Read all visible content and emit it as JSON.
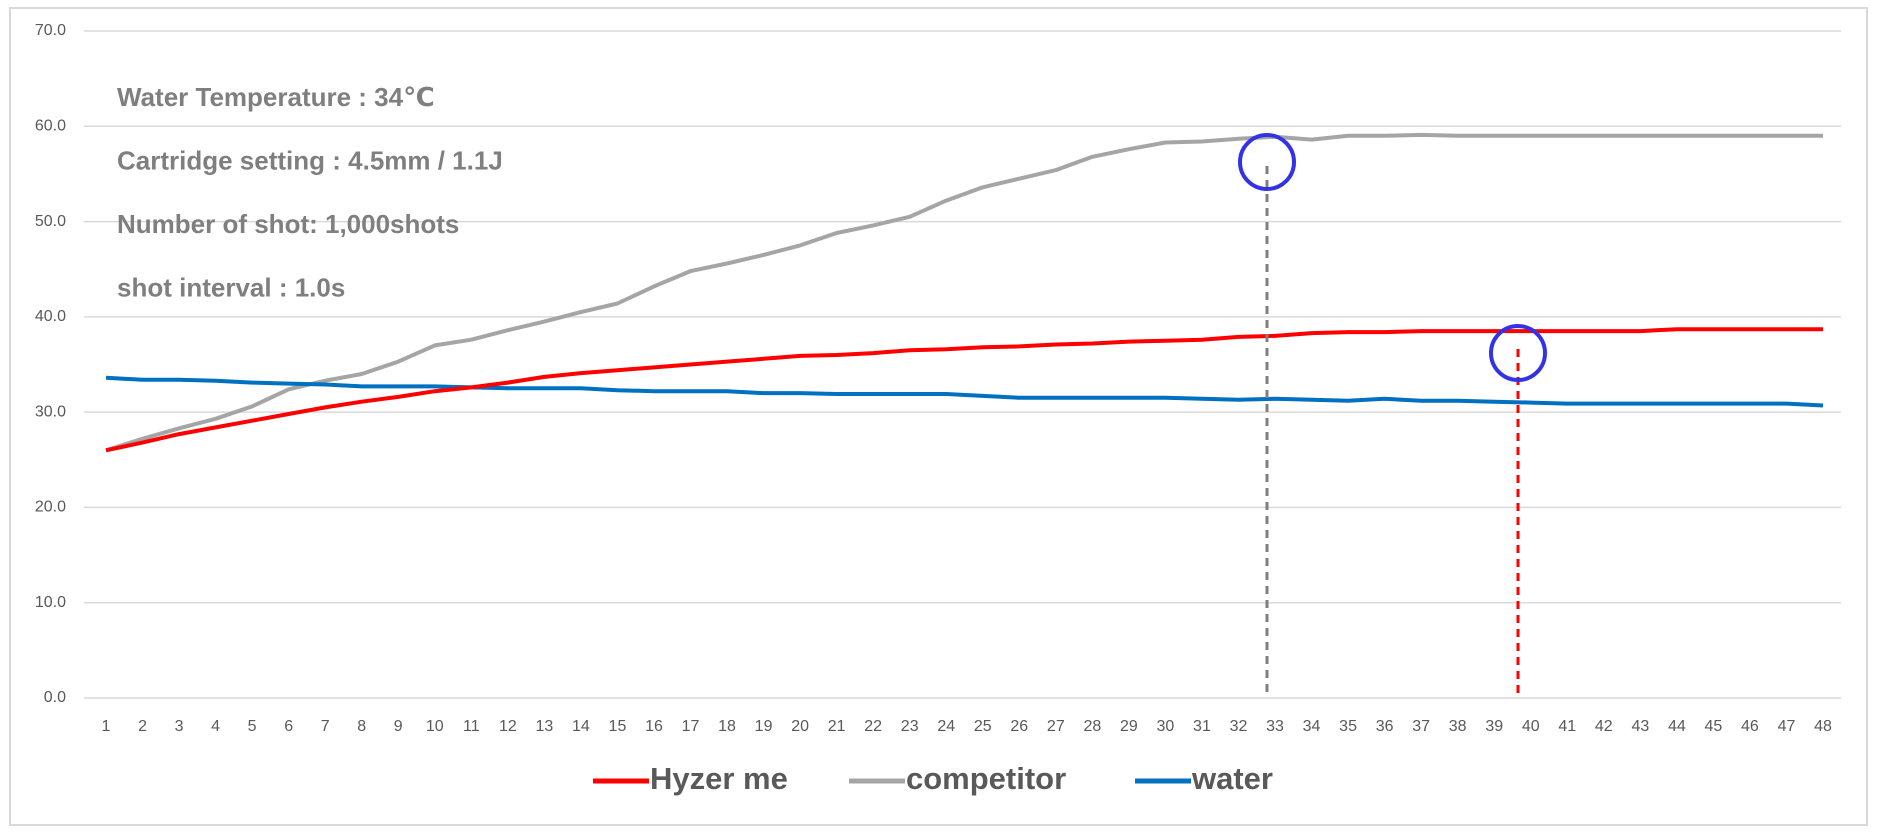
{
  "chart_data": {
    "type": "line",
    "annotations": [
      "Water Temperature : 34℃",
      "Cartridge setting : 4.5mm / 1.1J",
      "Number of shot: 1,000shots",
      "shot interval : 1.0s"
    ],
    "categories": [
      "1",
      "2",
      "3",
      "4",
      "5",
      "6",
      "7",
      "8",
      "9",
      "10",
      "11",
      "12",
      "13",
      "14",
      "15",
      "16",
      "17",
      "18",
      "19",
      "20",
      "21",
      "22",
      "23",
      "24",
      "25",
      "26",
      "27",
      "28",
      "29",
      "30",
      "31",
      "32",
      "33",
      "34",
      "35",
      "36",
      "37",
      "38",
      "39",
      "40",
      "41",
      "42",
      "43",
      "44",
      "45",
      "46",
      "47",
      "48"
    ],
    "series": [
      {
        "name": "Hyzer me",
        "color": "#ff0000",
        "values": [
          26.0,
          26.8,
          27.7,
          28.4,
          29.1,
          29.8,
          30.5,
          31.1,
          31.6,
          32.2,
          32.6,
          33.1,
          33.7,
          34.1,
          34.4,
          34.7,
          35.0,
          35.3,
          35.6,
          35.9,
          36.0,
          36.2,
          36.5,
          36.6,
          36.8,
          36.9,
          37.1,
          37.2,
          37.4,
          37.5,
          37.6,
          37.9,
          38.0,
          38.3,
          38.4,
          38.4,
          38.5,
          38.5,
          38.5,
          38.5,
          38.5,
          38.5,
          38.5,
          38.7,
          38.7,
          38.7,
          38.7,
          38.7
        ]
      },
      {
        "name": "competitor",
        "color": "#a5a5a5",
        "values": [
          26.0,
          27.2,
          28.3,
          29.3,
          30.6,
          32.4,
          33.3,
          34.0,
          35.3,
          37.0,
          37.6,
          38.6,
          39.5,
          40.5,
          41.4,
          43.2,
          44.8,
          45.6,
          46.5,
          47.5,
          48.8,
          49.6,
          50.5,
          52.2,
          53.6,
          54.5,
          55.4,
          56.8,
          57.6,
          58.3,
          58.4,
          58.7,
          58.9,
          58.6,
          59.0,
          59.0,
          59.1,
          59.0,
          59.0,
          59.0,
          59.0,
          59.0,
          59.0,
          59.0,
          59.0,
          59.0,
          59.0,
          59.0
        ]
      },
      {
        "name": "water",
        "color": "#0070c0",
        "values": [
          33.6,
          33.4,
          33.4,
          33.3,
          33.1,
          33.0,
          32.9,
          32.7,
          32.7,
          32.7,
          32.6,
          32.5,
          32.5,
          32.5,
          32.3,
          32.2,
          32.2,
          32.2,
          32.0,
          32.0,
          31.9,
          31.9,
          31.9,
          31.9,
          31.7,
          31.5,
          31.5,
          31.5,
          31.5,
          31.5,
          31.4,
          31.3,
          31.4,
          31.3,
          31.2,
          31.4,
          31.2,
          31.2,
          31.1,
          31.0,
          30.9,
          30.9,
          30.9,
          30.9,
          30.9,
          30.9,
          30.9,
          30.7
        ]
      }
    ],
    "ylim": [
      0,
      70
    ],
    "yticks": [
      {
        "value": 0,
        "label": "0.0"
      },
      {
        "value": 10,
        "label": "10.0"
      },
      {
        "value": 20,
        "label": "20.0"
      },
      {
        "value": 30,
        "label": "30.0"
      },
      {
        "value": 40,
        "label": "40.0"
      },
      {
        "value": 50,
        "label": "50.0"
      },
      {
        "value": 60,
        "label": "60.0"
      },
      {
        "value": 70,
        "label": "70.0"
      }
    ],
    "grid": true,
    "legend": "bottom"
  }
}
